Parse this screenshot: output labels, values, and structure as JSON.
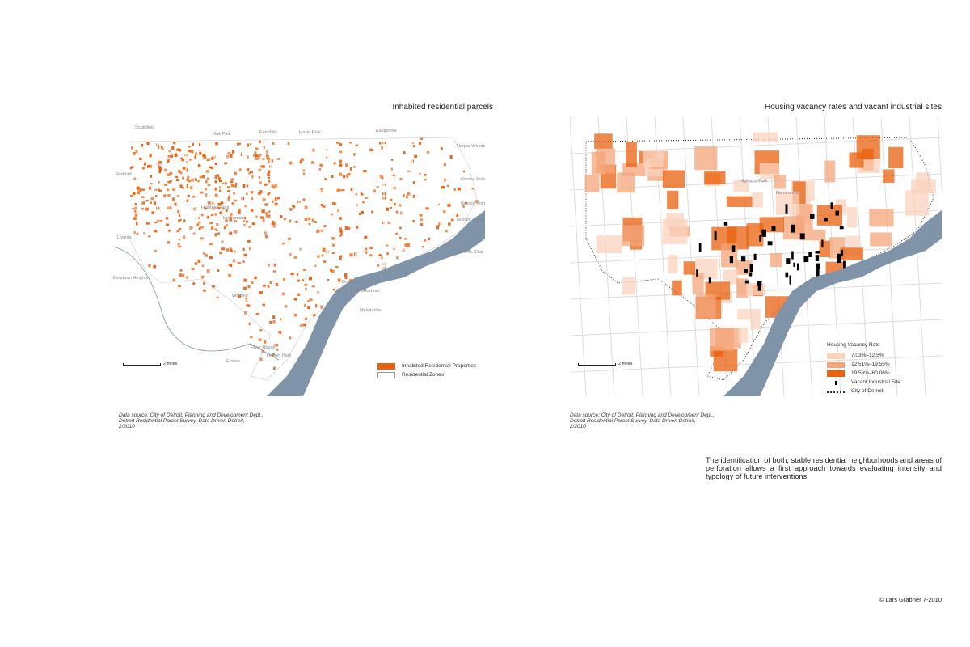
{
  "left_map": {
    "title": "Inhabited residential parcels",
    "places": [
      "Southfield",
      "Oak Park",
      "Ferndale",
      "Hazel Park",
      "Eastpointe",
      "Harper Woods",
      "Redford",
      "Highland Park",
      "Hamtramck",
      "Grosse Pointe Farms",
      "Grosse Pointe",
      "Grosse Pointe Park",
      "Livonia",
      "Lake St. Clair",
      "Dearborn Heights",
      "Downtown Detroit",
      "Detroit River",
      "Dearborn",
      "Windsor",
      "Melvindale",
      "River Rouge",
      "Lincoln Park",
      "Ecorse"
    ],
    "legend": [
      {
        "label": "Inhabited Residential Properties",
        "color": "#e8610f"
      },
      {
        "label": "Residential Zones",
        "color": "#ffffff"
      }
    ],
    "scale": "2 miles",
    "source": [
      "Data source: City of Detroit, Planning and Development Dept.,",
      "Detroit Residential Parcel Survey, Data Driven Detroit,",
      "2/2010"
    ]
  },
  "right_map": {
    "title": "Housing vacancy rates and vacant industrial sites",
    "places": [
      "Highland Park",
      "Hamtramck"
    ],
    "legend_title": "Housing Vacancy Rate",
    "legend": [
      {
        "label": "7.03%–12.5%",
        "color": "#f9d3bd"
      },
      {
        "label": "12.51%–19.55%",
        "color": "#f3a57a"
      },
      {
        "label": "19.56%–60.06%",
        "color": "#e8610f"
      },
      {
        "label": "Vacant Industrial Site",
        "icon": "black-rect"
      },
      {
        "label": "City of Detroit",
        "icon": "dotted-line"
      }
    ],
    "scale": "2 miles",
    "source": [
      "Data source: City of Detroit, Planning and Development Dept.,",
      "Detroit Residential Parcel Survey, Data Driven Detroit,",
      "2/2010"
    ]
  },
  "note": "The identification of both, stable residential neighborhoods and areas of perforation allows a first approach towards evaluating intensity and typology of future interventions.",
  "copyright": "© Lars Gräbner 7-2010",
  "colors": {
    "river": "#7f94a8",
    "orange": "#e8610f"
  }
}
